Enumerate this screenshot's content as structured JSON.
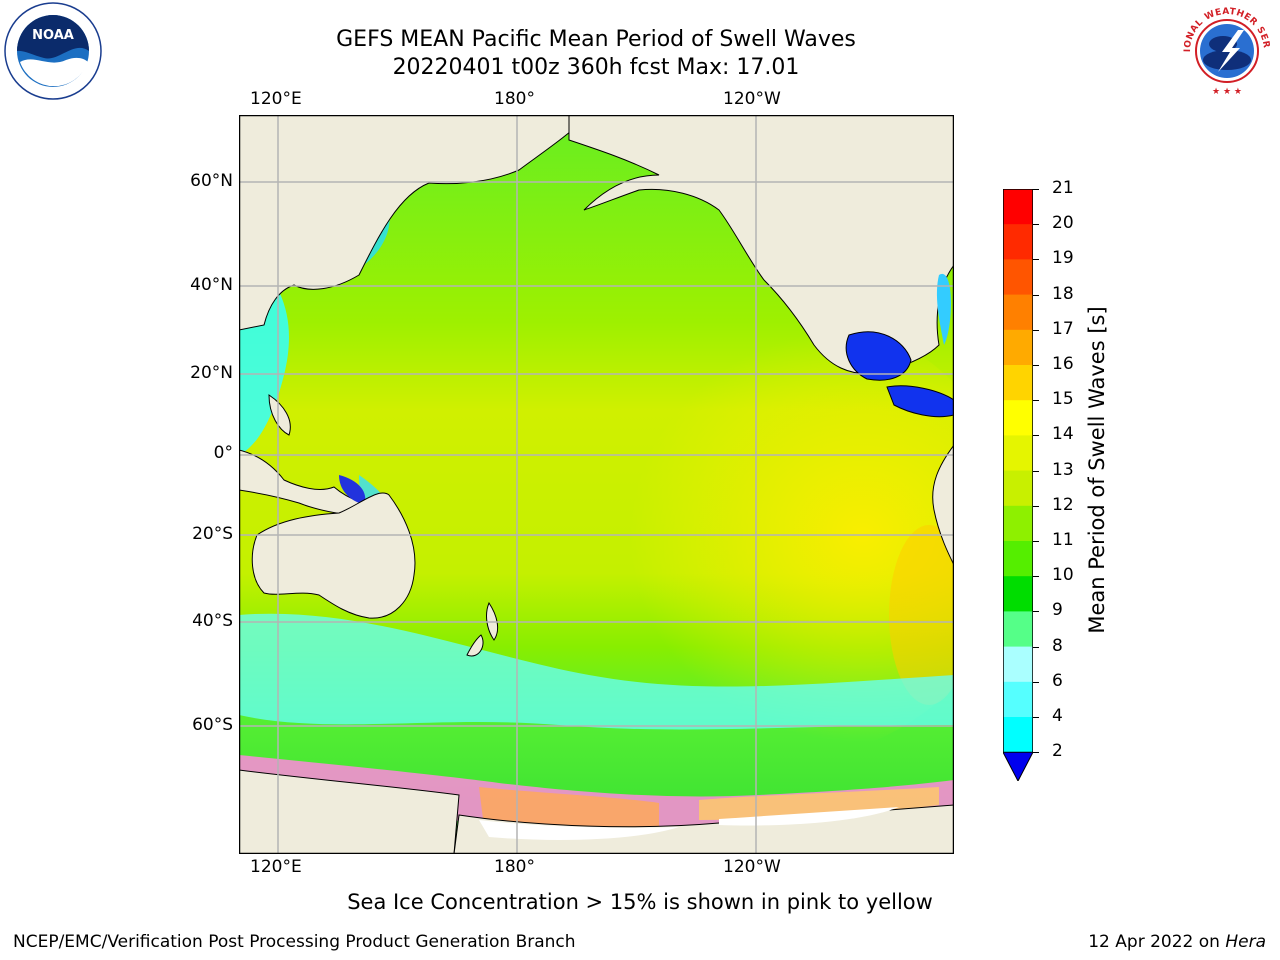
{
  "title": {
    "line1": "GEFS MEAN Pacific Mean Period of Swell Waves",
    "line2": "20220401 t00z 360h fcst   Max: 17.01"
  },
  "map": {
    "top_lon_labels": [
      "120°E",
      "180°",
      "120°W"
    ],
    "bottom_lon_labels": [
      "120°E",
      "180°",
      "120°W"
    ],
    "lat_labels": [
      "60°N",
      "40°N",
      "20°N",
      "0°",
      "20°S",
      "40°S",
      "60°S"
    ],
    "land_color": "#efecdc",
    "grid_color": "#b4b4b4"
  },
  "colorbar": {
    "title": "Mean Period of Swell Waves [s]",
    "ticks": [
      "21",
      "20",
      "19",
      "18",
      "17",
      "16",
      "15",
      "14",
      "13",
      "12",
      "11",
      "10",
      "9",
      "8",
      "6",
      "4",
      "2"
    ],
    "colors": [
      "#ff0000",
      "#ff2a00",
      "#ff5500",
      "#ff8000",
      "#ffaa00",
      "#ffd400",
      "#ffff00",
      "#e5f500",
      "#c8f000",
      "#8ef000",
      "#55ee00",
      "#00dd00",
      "#55ff88",
      "#aaffff",
      "#55ffff",
      "#00ffff",
      "#00e8ff",
      "#0077ff",
      "#0000ee"
    ]
  },
  "footnote": "Sea Ice Concentration > 15% is shown in pink to yellow",
  "credit_left": "NCEP/EMC/Verification Post Processing Product Generation Branch",
  "credit_right_date": "12 Apr 2022 on ",
  "credit_right_machine": "Hera",
  "logos": {
    "noaa_text": "NOAA",
    "nws_text": "NATIONAL WEATHER SERVICE"
  }
}
